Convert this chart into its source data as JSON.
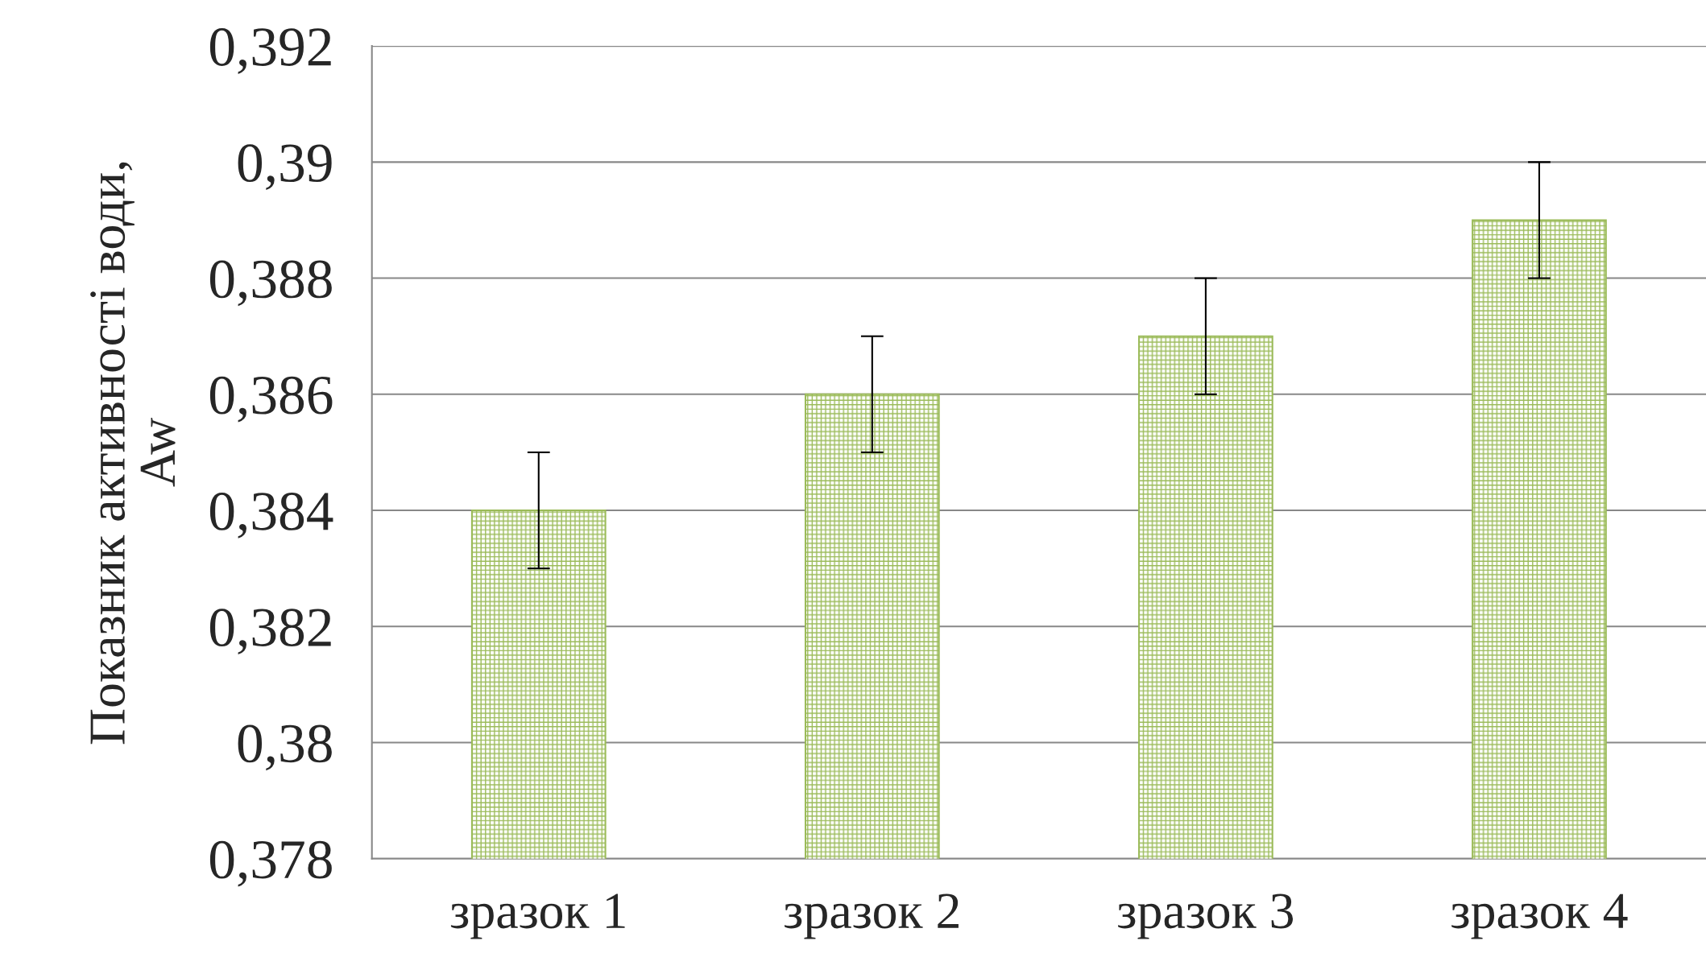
{
  "chart_data": {
    "type": "bar",
    "ylabel": "Показник активності води,\nAw",
    "categories": [
      "зразок 1",
      "зразок 2",
      "зразок 3",
      "зразок 4"
    ],
    "series": [
      {
        "color": "#9bbb59",
        "values": [
          0.384,
          0.386,
          0.387,
          0.389
        ],
        "errors": [
          0.001,
          0.001,
          0.001,
          0.001
        ]
      }
    ],
    "ylim": [
      0.378,
      0.392
    ],
    "yticks": [
      {
        "value": 0.378,
        "label": "0,378"
      },
      {
        "value": 0.38,
        "label": "0,38"
      },
      {
        "value": 0.382,
        "label": "0,382"
      },
      {
        "value": 0.384,
        "label": "0,384"
      },
      {
        "value": 0.386,
        "label": "0,386"
      },
      {
        "value": 0.388,
        "label": "0,388"
      },
      {
        "value": 0.39,
        "label": "0,39"
      },
      {
        "value": 0.392,
        "label": "0,392"
      }
    ],
    "grid": "y",
    "legend": false
  }
}
